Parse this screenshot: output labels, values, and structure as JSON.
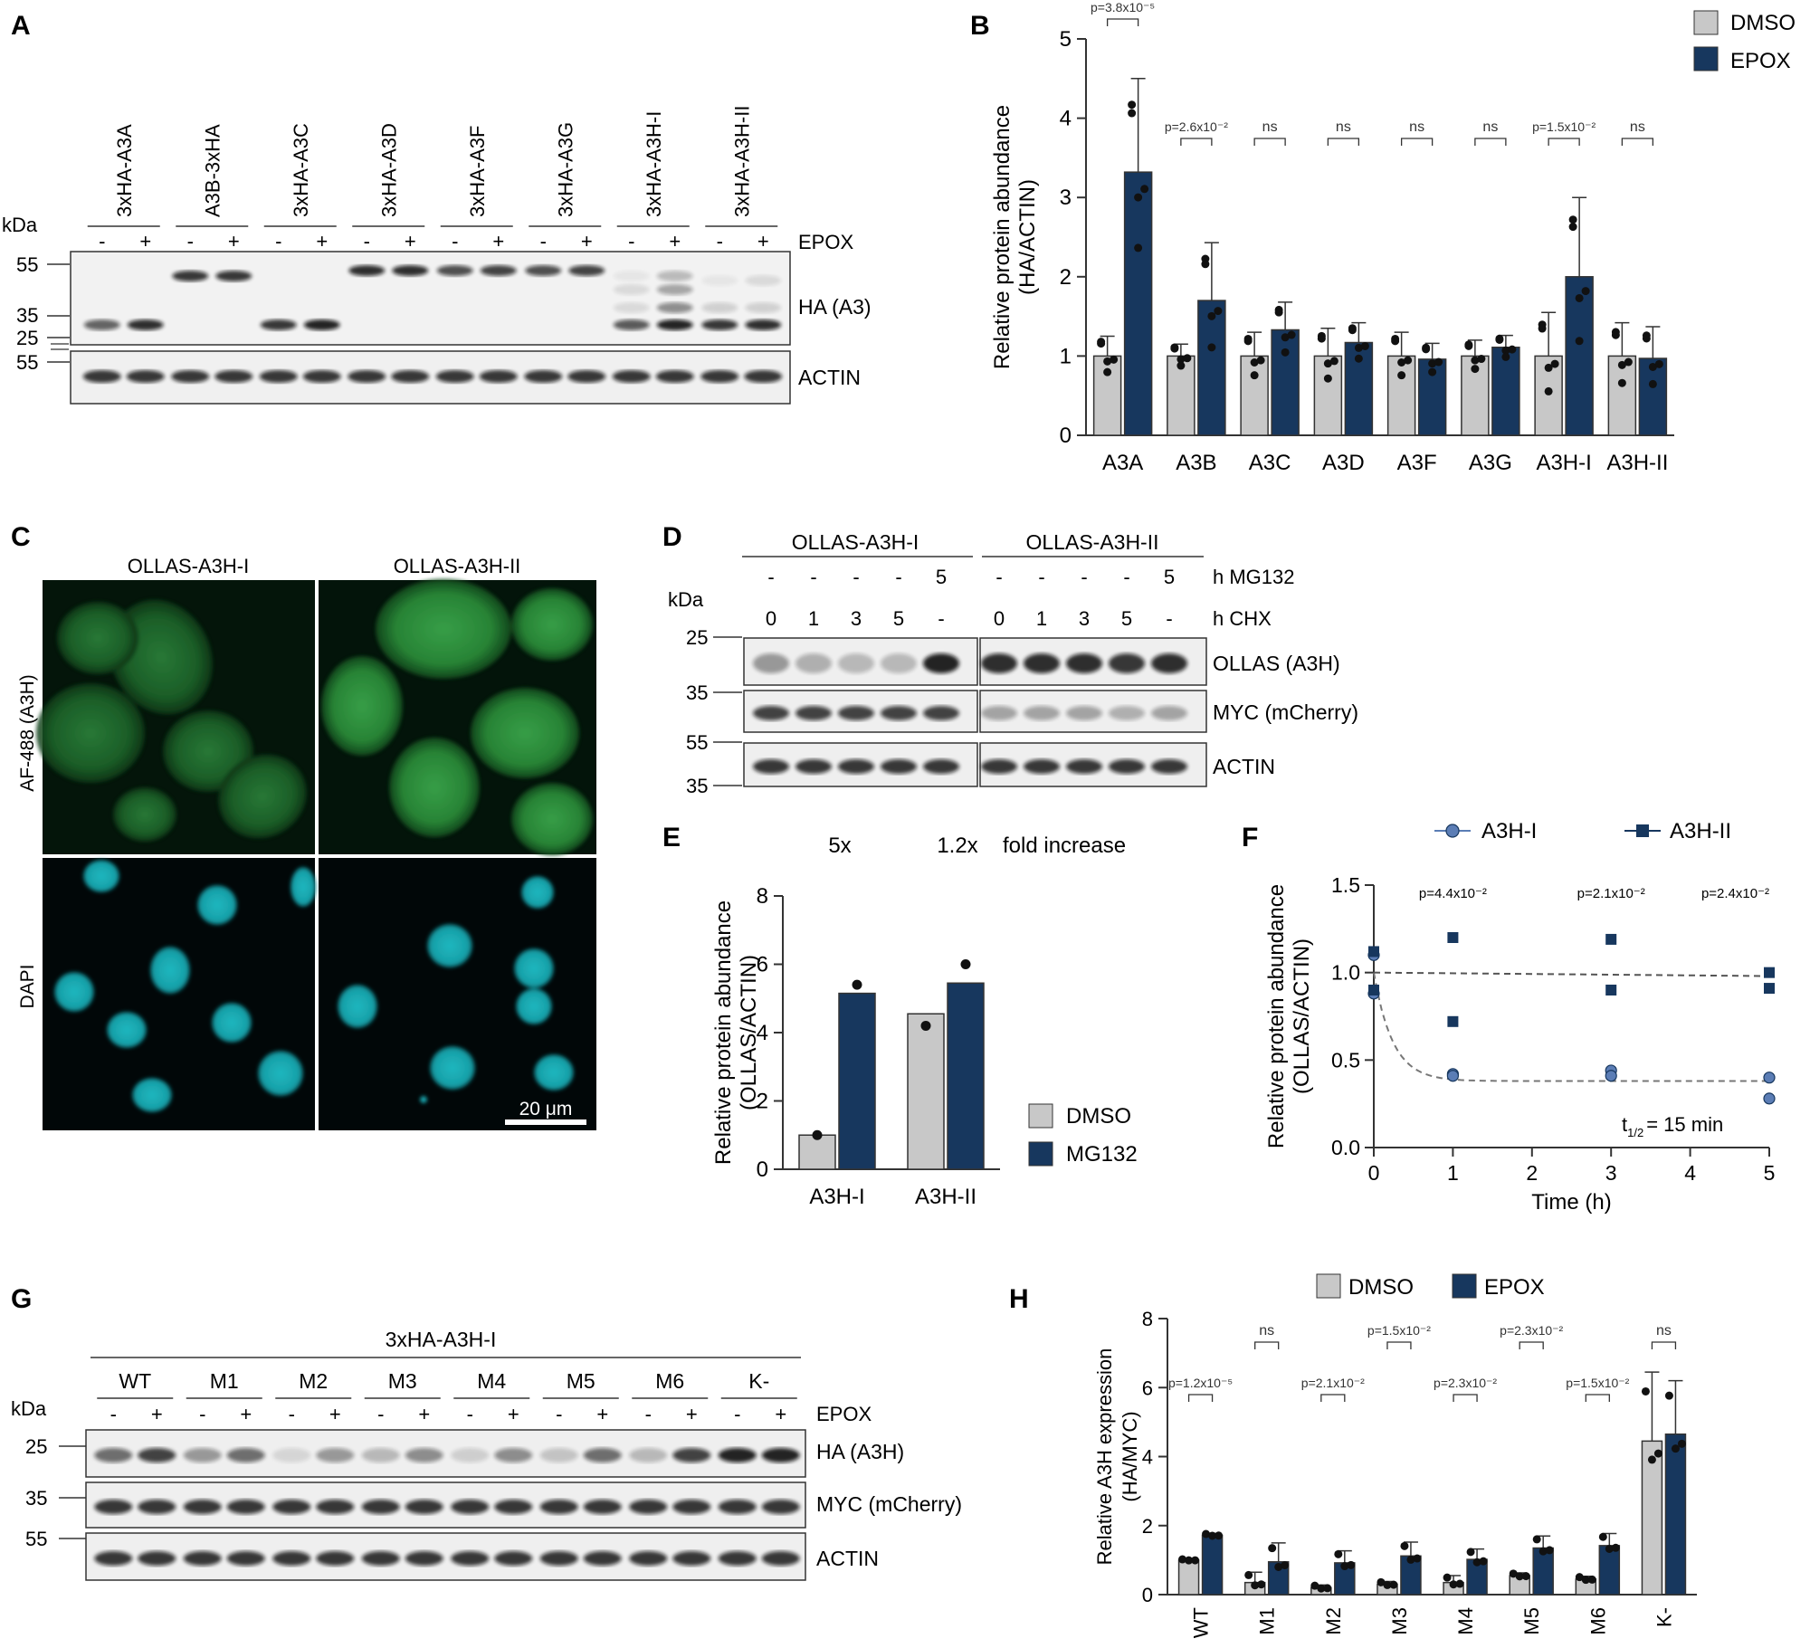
{
  "colors": {
    "dmso": "#c8c8c8",
    "drug": "#17375e",
    "a3h1": "#5b7db5",
    "a3h2": "#17375e"
  },
  "a": {
    "letter": "A",
    "kda": "kDa",
    "treat": "EPOX",
    "minus": "-",
    "plus": "+",
    "lanes": [
      "3xHA-A3A",
      "A3B-3xHA",
      "3xHA-A3C",
      "3xHA-A3D",
      "3xHA-A3F",
      "3xHA-A3G",
      "3xHA-A3H-I",
      "3xHA-A3H-II"
    ],
    "marks_top": [
      "55",
      "35",
      "25"
    ],
    "marks_bottom": [
      "55"
    ],
    "blots": [
      "HA (A3)",
      "ACTIN"
    ]
  },
  "b": {
    "letter": "B",
    "legend": [
      "DMSO",
      "EPOX"
    ],
    "chart_data": {
      "type": "bar",
      "categories": [
        "A3A",
        "A3B",
        "A3C",
        "A3D",
        "A3F",
        "A3G",
        "A3H-I",
        "A3H-II"
      ],
      "series": [
        {
          "name": "DMSO",
          "values": [
            1.0,
            1.0,
            1.0,
            1.0,
            1.0,
            1.0,
            1.0,
            1.0
          ],
          "sd": [
            0.25,
            0.15,
            0.3,
            0.35,
            0.3,
            0.2,
            0.55,
            0.42
          ]
        },
        {
          "name": "EPOX",
          "values": [
            3.32,
            1.7,
            1.33,
            1.17,
            0.96,
            1.11,
            2.0,
            0.97
          ],
          "sd": [
            1.18,
            0.73,
            0.35,
            0.25,
            0.2,
            0.15,
            1.0,
            0.4
          ]
        }
      ],
      "ylabel": "Relative protein abundance (HA/ACTIN)",
      "ylim": [
        0,
        5
      ],
      "yticks": [
        0,
        1,
        2,
        3,
        4,
        5
      ],
      "pvalues": [
        "p=3.8x10⁻⁵",
        "p=2.6x10⁻²",
        "ns",
        "ns",
        "ns",
        "ns",
        "p=1.5x10⁻²",
        "ns"
      ]
    }
  },
  "c": {
    "letter": "C",
    "cols": [
      "OLLAS-A3H-I",
      "OLLAS-A3H-II"
    ],
    "rows": [
      "AF-488 (A3H)",
      "DAPI"
    ],
    "scale": "20 μm"
  },
  "d": {
    "letter": "D",
    "kda": "kDa",
    "groups": [
      "OLLAS-A3H-I",
      "OLLAS-A3H-II"
    ],
    "mg132_row": [
      "-",
      "-",
      "-",
      "-",
      "5"
    ],
    "mg132_label": "h MG132",
    "chx_row": [
      "0",
      "1",
      "3",
      "5",
      "-"
    ],
    "chx_label": "h CHX",
    "marks": [
      "25",
      "35",
      "55",
      "35"
    ],
    "blots": [
      "OLLAS (A3H)",
      "MYC (mCherry)",
      "ACTIN"
    ]
  },
  "e": {
    "letter": "E",
    "folds": [
      "5x",
      "1.2x"
    ],
    "fold_label": "fold increase",
    "legend": [
      "DMSO",
      "MG132"
    ],
    "chart_data": {
      "type": "bar",
      "categories": [
        "A3H-I",
        "A3H-II"
      ],
      "series": [
        {
          "name": "DMSO",
          "values": [
            1.0,
            4.55
          ]
        },
        {
          "name": "MG132",
          "values": [
            5.15,
            5.45
          ]
        }
      ],
      "ylabel": "Relative protein abundance (OLLAS/ACTIN)",
      "ylim": [
        0,
        8
      ],
      "yticks": [
        0,
        2,
        4,
        6,
        8
      ]
    }
  },
  "f": {
    "letter": "F",
    "legend": [
      "A3H-I",
      "A3H-II"
    ],
    "half_life_pre": "t",
    "half_life_sub": "1/2",
    "half_life_post": "= 15 min",
    "chart_data": {
      "type": "scatter",
      "xlabel": "Time (h)",
      "ylabel": "Relative protein abundance (OLLAS/ACTIN)",
      "xlim": [
        0,
        5
      ],
      "ylim": [
        0,
        1.5
      ],
      "xticks": [
        0,
        1,
        2,
        3,
        4,
        5
      ],
      "yticks": [
        "0.0",
        "0.5",
        "1.0",
        "1.5"
      ],
      "series": [
        {
          "name": "A3H-I",
          "points": [
            [
              0,
              1.1
            ],
            [
              0,
              0.88
            ],
            [
              1,
              0.42
            ],
            [
              1,
              0.41
            ],
            [
              3,
              0.44
            ],
            [
              3,
              0.41
            ],
            [
              5,
              0.4
            ],
            [
              5,
              0.28
            ]
          ]
        },
        {
          "name": "A3H-II",
          "points": [
            [
              0,
              1.12
            ],
            [
              0,
              0.9
            ],
            [
              1,
              1.2
            ],
            [
              1,
              0.72
            ],
            [
              3,
              1.19
            ],
            [
              3,
              0.9
            ],
            [
              5,
              1.0
            ],
            [
              5,
              0.91
            ]
          ]
        }
      ],
      "pvalues": [
        "p=4.4x10⁻²",
        "p=2.1x10⁻²",
        "p=2.4x10⁻²"
      ]
    }
  },
  "g": {
    "letter": "G",
    "construct": "3xHA-A3H-I",
    "kda": "kDa",
    "treat": "EPOX",
    "minus": "-",
    "plus": "+",
    "lanes": [
      "WT",
      "M1",
      "M2",
      "M3",
      "M4",
      "M5",
      "M6",
      "K-"
    ],
    "marks": [
      "25",
      "35",
      "55"
    ],
    "blots": [
      "HA (A3H)",
      "MYC (mCherry)",
      "ACTIN"
    ]
  },
  "h": {
    "letter": "H",
    "legend": [
      "DMSO",
      "EPOX"
    ],
    "chart_data": {
      "type": "bar",
      "categories": [
        "WT",
        "M1",
        "M2",
        "M3",
        "M4",
        "M5",
        "M6",
        "K-"
      ],
      "series": [
        {
          "name": "DMSO",
          "values": [
            1.0,
            0.35,
            0.2,
            0.3,
            0.35,
            0.55,
            0.45,
            4.45
          ],
          "sd": [
            0.03,
            0.3,
            0.08,
            0.08,
            0.2,
            0.08,
            0.08,
            2.0
          ]
        },
        {
          "name": "EPOX",
          "values": [
            1.72,
            0.95,
            0.92,
            1.12,
            1.02,
            1.35,
            1.42,
            4.65
          ],
          "sd": [
            0.05,
            0.55,
            0.35,
            0.4,
            0.3,
            0.35,
            0.35,
            1.55
          ]
        }
      ],
      "ylabel": "Relative A3H expression (HA/MYC)",
      "ylim": [
        0,
        8
      ],
      "yticks": [
        0,
        2,
        4,
        6,
        8
      ],
      "pvalues": [
        "p=1.2x10⁻⁵",
        "ns",
        "p=2.1x10⁻²",
        "p=1.5x10⁻²",
        "p=2.3x10⁻²",
        "p=2.3x10⁻²",
        "p=1.5x10⁻²",
        "ns"
      ]
    }
  }
}
